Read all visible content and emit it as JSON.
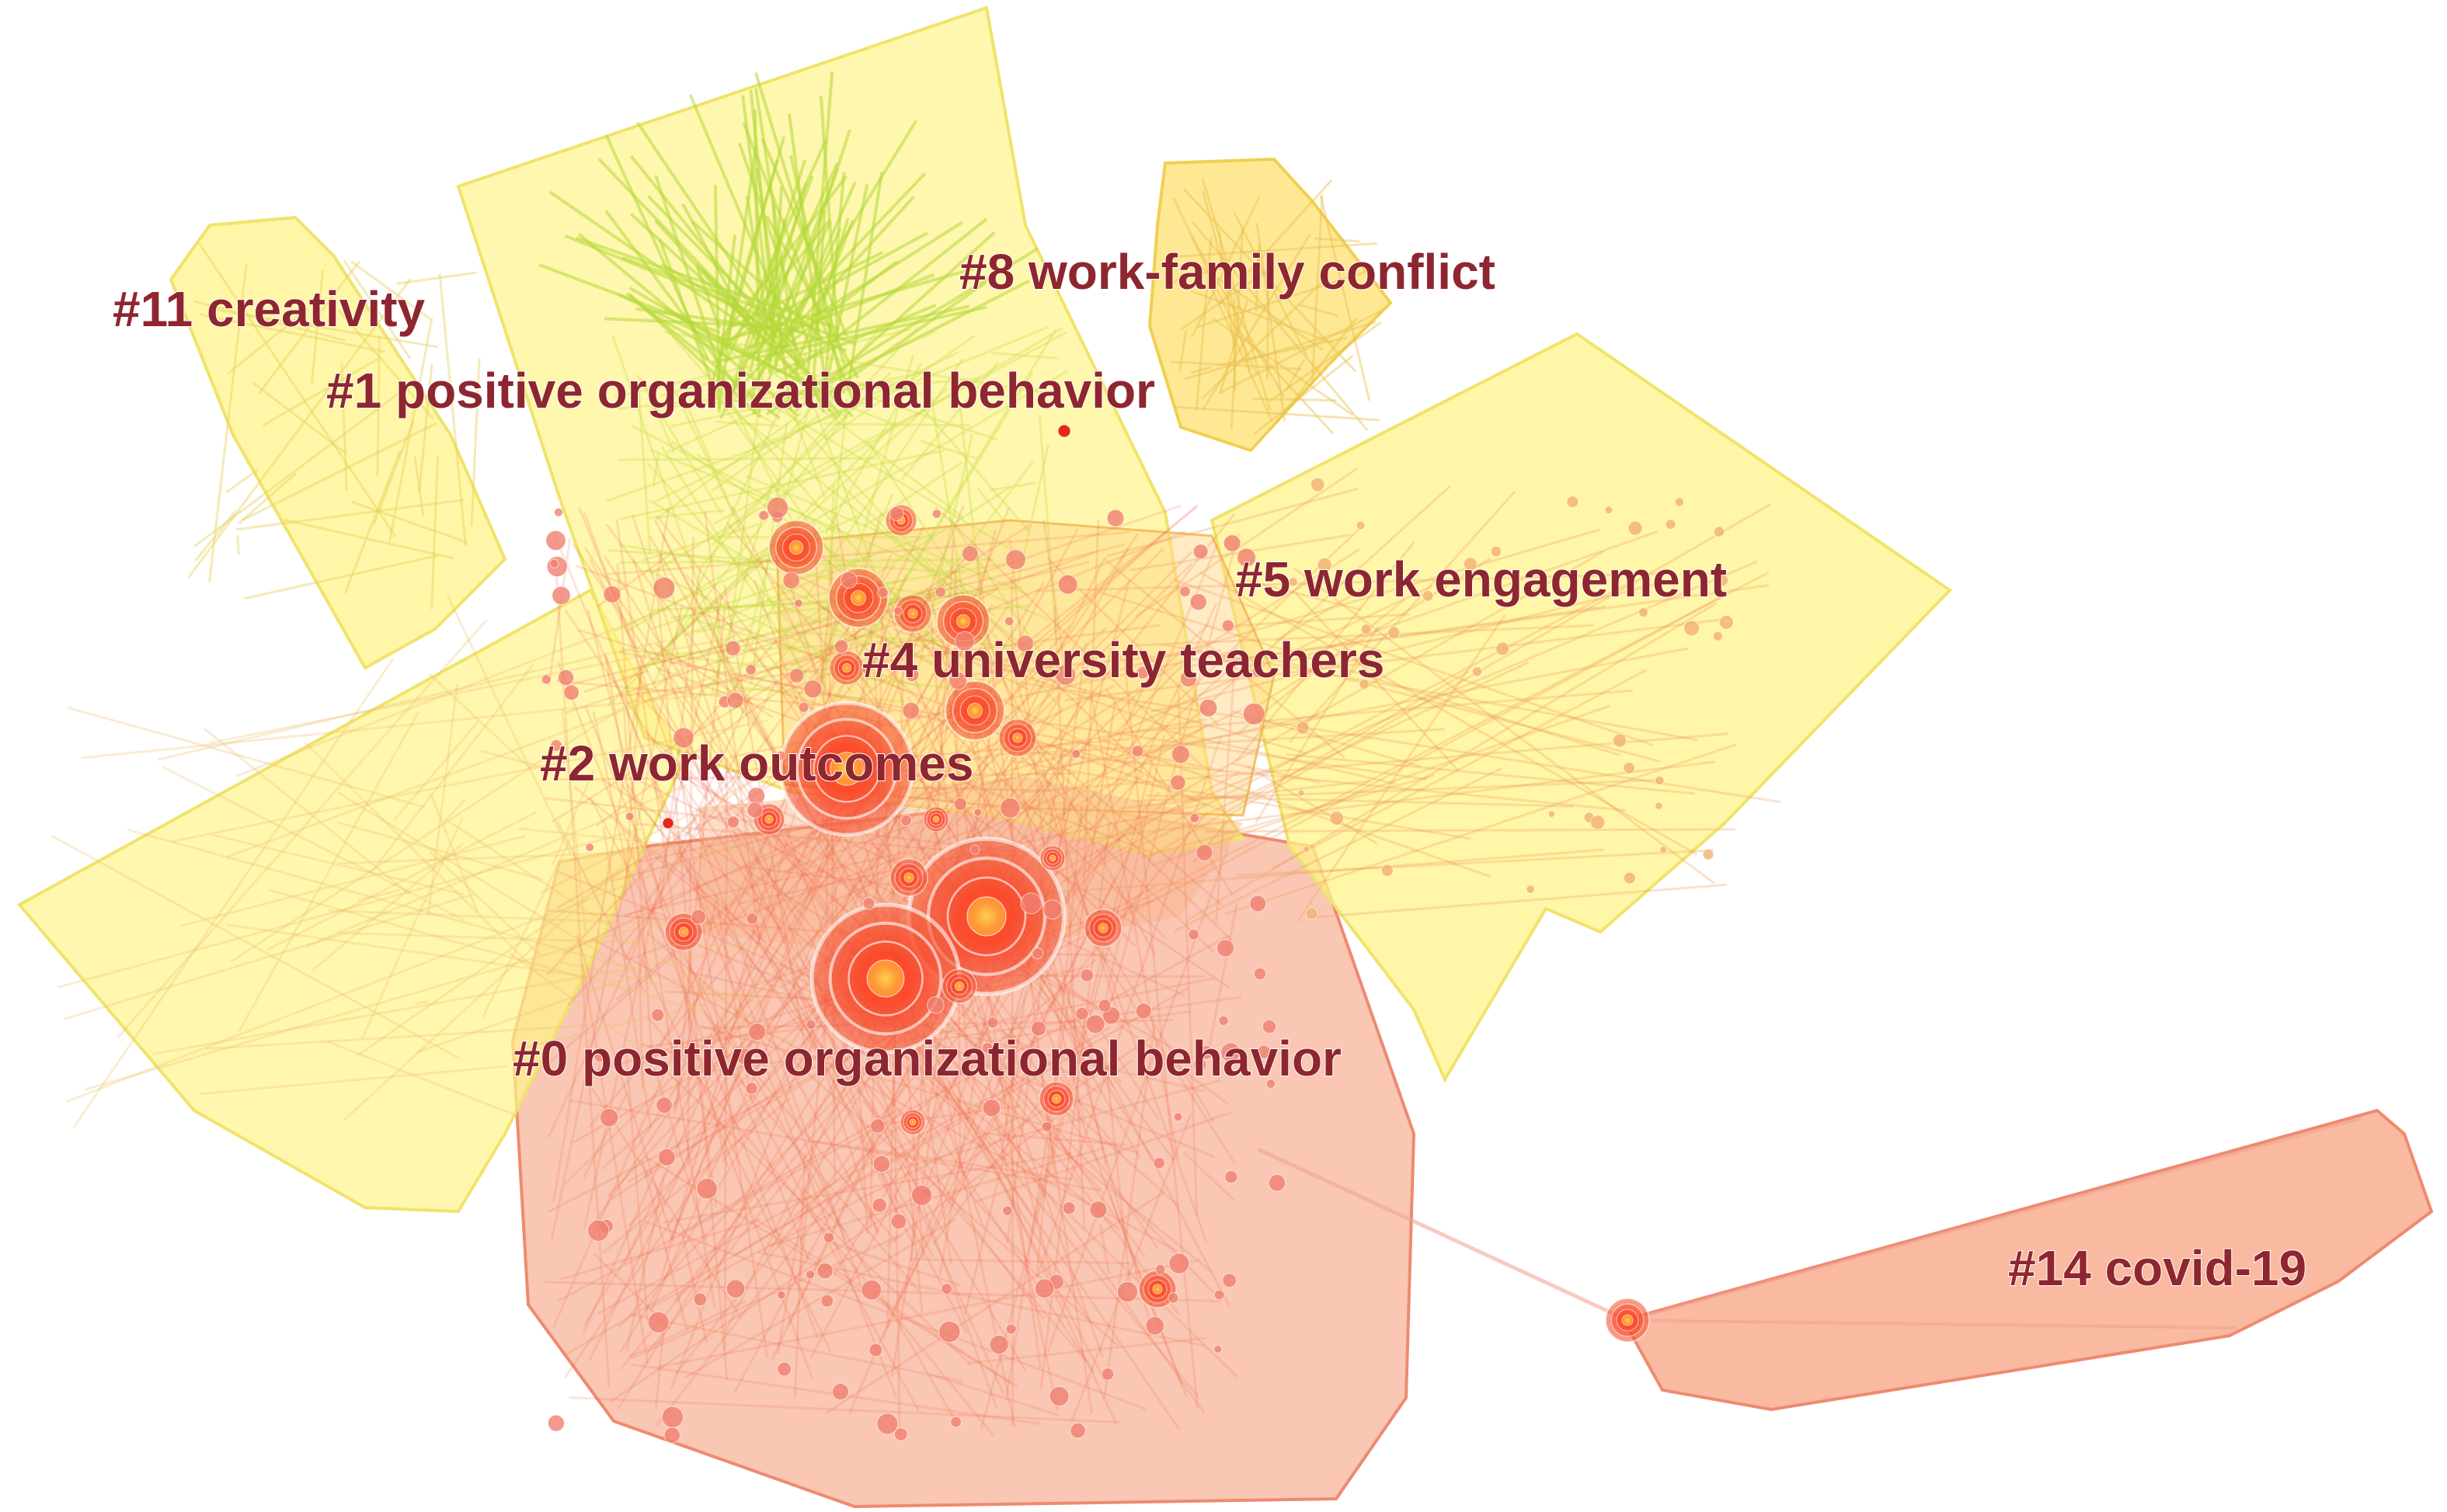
{
  "colors": {
    "yellow_hull": "#fff38a",
    "yellow_hull_stroke": "#f0e36a",
    "orange_hull": "#f7a98a",
    "orange_hull_stroke": "#ee8a70",
    "yellow_green_edges": "#c6e04a",
    "red_node": "#e8261a",
    "label": "#8e2630"
  },
  "clusters": [
    {
      "id": "c0",
      "label": "#0 positive organizational behavior",
      "color": "orange"
    },
    {
      "id": "c1",
      "label": "#1 positive organizational behavior",
      "color": "yellow"
    },
    {
      "id": "c2",
      "label": "#2 work outcomes",
      "color": "yellow"
    },
    {
      "id": "c4",
      "label": "#4 university teachers",
      "color": "yellow"
    },
    {
      "id": "c5",
      "label": "#5 work engagement",
      "color": "yellow"
    },
    {
      "id": "c8",
      "label": "#8 work-family conflict",
      "color": "yellow"
    },
    {
      "id": "c11",
      "label": "#11 creativity",
      "color": "yellow"
    },
    {
      "id": "c14",
      "label": "#14 covid-19",
      "color": "orange"
    }
  ]
}
